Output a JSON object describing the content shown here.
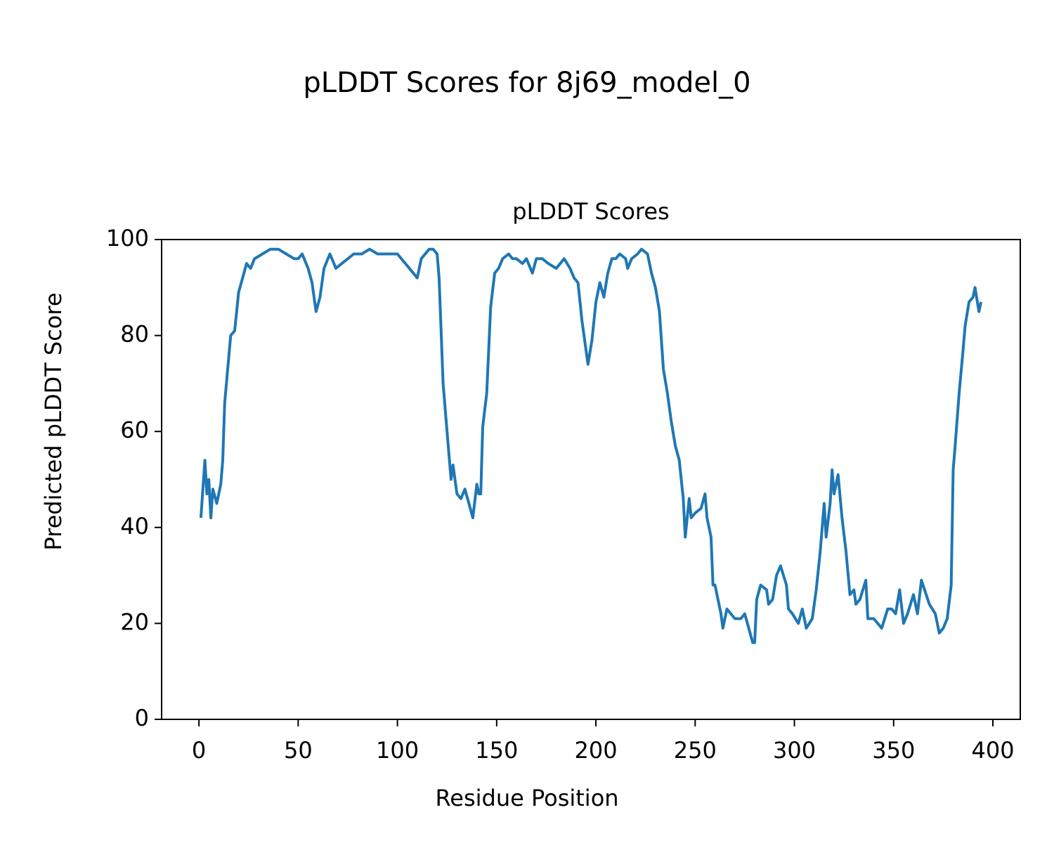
{
  "chart_data": {
    "type": "line",
    "title": "pLDDT Scores for 8j69_model_0",
    "subtitle": "pLDDT Scores",
    "x_label": "Residue Position",
    "y_label": "Predicted pLDDT Score",
    "xlim": [
      -18.8,
      413.8
    ],
    "ylim": [
      0,
      100
    ],
    "xticks": [
      0,
      50,
      100,
      150,
      200,
      250,
      300,
      350,
      400
    ],
    "yticks": [
      0,
      20,
      40,
      60,
      80,
      100
    ],
    "grid": false,
    "series": [
      {
        "name": "pLDDT",
        "color": "#1f77b4",
        "x": [
          1,
          3,
          4,
          5,
          6,
          7,
          9,
          11,
          12,
          13,
          16,
          18,
          20,
          22,
          24,
          26,
          28,
          32,
          36,
          40,
          44,
          48,
          50,
          52,
          55,
          57,
          59,
          61,
          63,
          66,
          68,
          69,
          72,
          75,
          78,
          82,
          86,
          90,
          95,
          100,
          104,
          108,
          110,
          112,
          114,
          116,
          118,
          120,
          121,
          123,
          125,
          127,
          128,
          130,
          132,
          134,
          136,
          138,
          140,
          141,
          142,
          143,
          145,
          147,
          149,
          151,
          153,
          156,
          158,
          160,
          163,
          165,
          168,
          170,
          173,
          176,
          180,
          184,
          187,
          189,
          191,
          193,
          196,
          198,
          200,
          202,
          204,
          206,
          208,
          210,
          212,
          215,
          216,
          218,
          221,
          223,
          226,
          228,
          230,
          232,
          234,
          236,
          238,
          240,
          242,
          243,
          244,
          245,
          246,
          247,
          248,
          250,
          253,
          255,
          256,
          258,
          259,
          260,
          263,
          264,
          266,
          270,
          273,
          275,
          277,
          279,
          280,
          281,
          283,
          286,
          287,
          289,
          291,
          293,
          296,
          297,
          299,
          302,
          304,
          306,
          309,
          311,
          313,
          315,
          316,
          318,
          319,
          320,
          322,
          324,
          326,
          328,
          330,
          331,
          333,
          336,
          337,
          340,
          344,
          347,
          349,
          351,
          353,
          355,
          357,
          360,
          362,
          364,
          368,
          371,
          373,
          375,
          377,
          379,
          380,
          381,
          383,
          385,
          386,
          388,
          390,
          391,
          393,
          394
        ],
        "values": [
          42,
          54,
          47,
          50,
          42,
          48,
          45,
          49,
          54,
          66,
          80,
          81,
          89,
          92,
          95,
          94,
          96,
          97,
          98,
          98,
          97,
          96,
          96,
          97,
          94,
          91,
          85,
          88,
          94,
          97,
          95,
          94,
          95,
          96,
          97,
          97,
          98,
          97,
          97,
          97,
          95,
          93,
          92,
          96,
          97,
          98,
          98,
          97,
          92,
          70,
          60,
          50,
          53,
          47,
          46,
          48,
          45,
          42,
          49,
          47,
          47,
          61,
          68,
          86,
          93,
          94,
          96,
          97,
          96,
          96,
          95,
          96,
          93,
          96,
          96,
          95,
          94,
          96,
          94,
          92,
          91,
          83,
          74,
          79,
          87,
          91,
          88,
          93,
          96,
          96,
          97,
          96,
          94,
          96,
          97,
          98,
          97,
          93,
          90,
          85,
          73,
          68,
          62,
          57,
          54,
          50,
          46,
          38,
          42,
          46,
          42,
          43,
          44,
          47,
          42,
          38,
          28,
          28,
          22,
          19,
          23,
          21,
          21,
          22,
          19,
          16,
          16,
          25,
          28,
          27,
          24,
          25,
          30,
          32,
          28,
          23,
          22,
          20,
          23,
          19,
          21,
          27,
          35,
          45,
          38,
          45,
          52,
          47,
          51,
          42,
          35,
          26,
          27,
          24,
          25,
          29,
          21,
          21,
          19,
          23,
          23,
          22,
          27,
          20,
          22,
          26,
          22,
          29,
          24,
          22,
          18,
          19,
          21,
          28,
          52,
          57,
          68,
          77,
          82,
          87,
          88,
          90,
          85,
          87
        ]
      }
    ]
  }
}
